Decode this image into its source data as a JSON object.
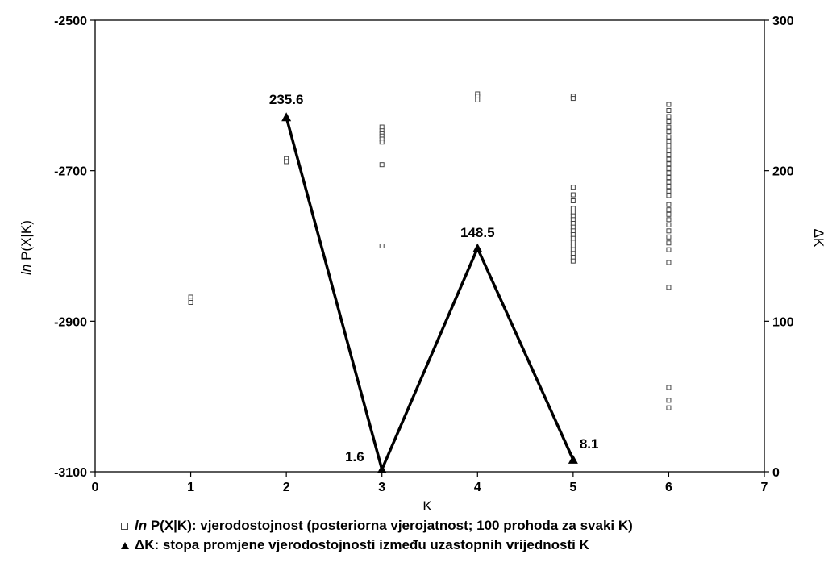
{
  "chart_data": {
    "type": "scatter",
    "x_axis": {
      "label": "K",
      "range": [
        0,
        7
      ],
      "ticks": [
        "0",
        "1",
        "2",
        "3",
        "4",
        "5",
        "6",
        "7"
      ]
    },
    "y_left_axis": {
      "label_italic": "ln",
      "label_rest": " P(X|K)",
      "range": [
        -3100,
        -2500
      ],
      "ticks": [
        "-3100",
        "-2900",
        "-2700",
        "-2500"
      ]
    },
    "y_right_axis": {
      "label": "ΔK",
      "range": [
        0,
        300
      ],
      "ticks": [
        "0",
        "100",
        "200",
        "300"
      ]
    },
    "series": [
      {
        "name_italic": "ln",
        "name_rest": " P(X|K): vjerodostojnost (posteriorna vjerojatnost; 100 prohoda za svaki K)",
        "marker": "open-square",
        "axis": "left",
        "points": [
          [
            1,
            -2868
          ],
          [
            1,
            -2872
          ],
          [
            1,
            -2875
          ],
          [
            2,
            -2684
          ],
          [
            2,
            -2688
          ],
          [
            3,
            -2642
          ],
          [
            3,
            -2647
          ],
          [
            3,
            -2651
          ],
          [
            3,
            -2654
          ],
          [
            3,
            -2658
          ],
          [
            3,
            -2662
          ],
          [
            3,
            -2692
          ],
          [
            3,
            -2800
          ],
          [
            4,
            -2598
          ],
          [
            4,
            -2601
          ],
          [
            4,
            -2606
          ],
          [
            5,
            -2601
          ],
          [
            5,
            -2604
          ],
          [
            5,
            -2722
          ],
          [
            5,
            -2732
          ],
          [
            5,
            -2740
          ],
          [
            5,
            -2750
          ],
          [
            5,
            -2755
          ],
          [
            5,
            -2760
          ],
          [
            5,
            -2765
          ],
          [
            5,
            -2770
          ],
          [
            5,
            -2775
          ],
          [
            5,
            -2780
          ],
          [
            5,
            -2785
          ],
          [
            5,
            -2790
          ],
          [
            5,
            -2795
          ],
          [
            5,
            -2800
          ],
          [
            5,
            -2805
          ],
          [
            5,
            -2810
          ],
          [
            5,
            -2815
          ],
          [
            5,
            -2820
          ],
          [
            6,
            -2612
          ],
          [
            6,
            -2620
          ],
          [
            6,
            -2628
          ],
          [
            6,
            -2635
          ],
          [
            6,
            -2642
          ],
          [
            6,
            -2648
          ],
          [
            6,
            -2655
          ],
          [
            6,
            -2661
          ],
          [
            6,
            -2667
          ],
          [
            6,
            -2673
          ],
          [
            6,
            -2679
          ],
          [
            6,
            -2685
          ],
          [
            6,
            -2691
          ],
          [
            6,
            -2697
          ],
          [
            6,
            -2703
          ],
          [
            6,
            -2709
          ],
          [
            6,
            -2715
          ],
          [
            6,
            -2721
          ],
          [
            6,
            -2727
          ],
          [
            6,
            -2733
          ],
          [
            6,
            -2745
          ],
          [
            6,
            -2752
          ],
          [
            6,
            -2758
          ],
          [
            6,
            -2765
          ],
          [
            6,
            -2772
          ],
          [
            6,
            -2780
          ],
          [
            6,
            -2788
          ],
          [
            6,
            -2796
          ],
          [
            6,
            -2805
          ],
          [
            6,
            -2822
          ],
          [
            6,
            -2855
          ],
          [
            6,
            -2988
          ],
          [
            6,
            -3005
          ],
          [
            6,
            -3015
          ]
        ]
      },
      {
        "name": "ΔK: stopa promjene vjerodostojnosti između uzastopnih vrijednosti K",
        "marker": "filled-triangle",
        "axis": "right",
        "x": [
          2,
          3,
          4,
          5
        ],
        "values": [
          235.6,
          1.6,
          148.5,
          8.1
        ],
        "labels": [
          "235.6",
          "1.6",
          "148.5",
          "8.1"
        ]
      }
    ],
    "grid": false,
    "legend_position": "bottom"
  }
}
